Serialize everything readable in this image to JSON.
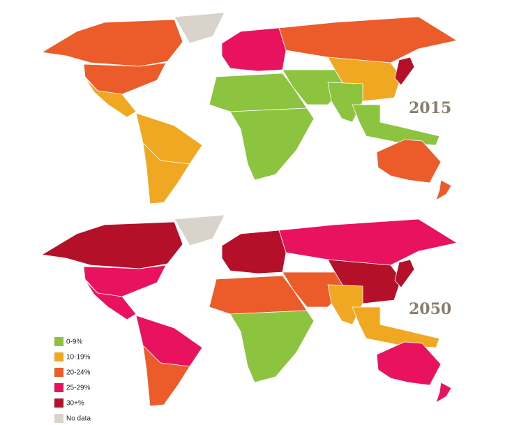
{
  "maps": [
    {
      "year": "2015"
    },
    {
      "year": "2050"
    }
  ],
  "legend": [
    {
      "label": "0-9%",
      "color": "#8cc43f"
    },
    {
      "label": "10-19%",
      "color": "#f0a823"
    },
    {
      "label": "20-24%",
      "color": "#ec5b2a"
    },
    {
      "label": "25-29%",
      "color": "#e8125e"
    },
    {
      "label": "30+%",
      "color": "#b5102a"
    },
    {
      "label": "No data",
      "color": "#d8d3cb"
    }
  ]
}
